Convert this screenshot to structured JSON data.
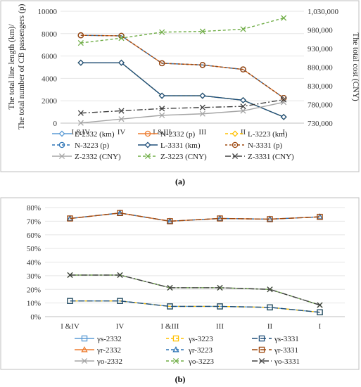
{
  "panel_a_label": "(a)",
  "panel_b_label": "(b)",
  "chart_data": [
    {
      "type": "line",
      "categories": [
        "I &IV",
        "IV",
        "I &III",
        "III",
        "II",
        "I"
      ],
      "ylabel_left_line1": "The total line length (km)/",
      "ylabel_left_line2": "The total number of CB passengers (p)",
      "ylabel_right": "The total cost (CNY)",
      "ylim_left": [
        0,
        10000
      ],
      "yticks_left": [
        0,
        2000,
        4000,
        6000,
        8000,
        10000
      ],
      "ylim_right": [
        730000,
        1030000
      ],
      "yticks_right": [
        "730,000",
        "780,000",
        "830,000",
        "880,000",
        "930,000",
        "980,000",
        "1,030,000"
      ],
      "ytick_right_values": [
        730000,
        780000,
        830000,
        880000,
        930000,
        980000,
        1030000
      ],
      "series": [
        {
          "name": "L-2332 (km)",
          "axis": "left",
          "color": "#5b9bd5",
          "dash": "",
          "marker": "diamond",
          "values": [
            5400,
            5400,
            2450,
            2450,
            2050,
            550
          ]
        },
        {
          "name": "N-2332 (p)",
          "axis": "left",
          "color": "#ed7d31",
          "dash": "",
          "marker": "circle",
          "values": [
            7850,
            7800,
            5350,
            5200,
            4800,
            2250
          ]
        },
        {
          "name": "L-3223 (km)",
          "axis": "left",
          "color": "#ffc000",
          "dash": "4,3",
          "marker": "diamond",
          "values": [
            5400,
            5400,
            2450,
            2450,
            2050,
            550
          ]
        },
        {
          "name": "N-3223 (p)",
          "axis": "left",
          "color": "#2e75b6",
          "dash": "4,3",
          "marker": "circle",
          "values": [
            7850,
            7800,
            5350,
            5200,
            4800,
            2250
          ]
        },
        {
          "name": "L-3331 (km)",
          "axis": "left",
          "color": "#1f4e79",
          "dash": "",
          "marker": "diamond",
          "values": [
            5400,
            5400,
            2450,
            2450,
            2050,
            550
          ]
        },
        {
          "name": "N-3331 (p)",
          "axis": "left",
          "color": "#9e480e",
          "dash": "3,3",
          "marker": "circle",
          "values": [
            7850,
            7800,
            5350,
            5200,
            4800,
            2250
          ]
        },
        {
          "name": "Z-2332 (CNY)",
          "axis": "right",
          "color": "#a5a5a5",
          "dash": "",
          "marker": "x",
          "values": [
            730500,
            741000,
            751000,
            755000,
            763000,
            786000
          ]
        },
        {
          "name": "Z-3223 (CNY)",
          "axis": "right",
          "color": "#70ad47",
          "dash": "4,3",
          "marker": "x",
          "values": [
            945000,
            958000,
            974000,
            976000,
            982000,
            1012000
          ]
        },
        {
          "name": "Z-3331 (CNY)",
          "axis": "right",
          "color": "#404040",
          "dash": "8,3,2,3",
          "marker": "x",
          "values": [
            757000,
            763000,
            769000,
            772000,
            775000,
            793000
          ]
        }
      ]
    },
    {
      "type": "line",
      "categories": [
        "I &IV",
        "IV",
        "I &III",
        "III",
        "II",
        "I"
      ],
      "ylim": [
        0,
        80
      ],
      "yticks": [
        "0%",
        "10%",
        "20%",
        "30%",
        "40%",
        "50%",
        "60%",
        "70%",
        "80%"
      ],
      "ytick_values": [
        0,
        10,
        20,
        30,
        40,
        50,
        60,
        70,
        80
      ],
      "series": [
        {
          "name": "γs-2332",
          "color": "#5b9bd5",
          "dash": "",
          "marker": "square",
          "values": [
            11.5,
            11.5,
            7.5,
            7.5,
            6.8,
            3.2
          ]
        },
        {
          "name": "γs-3223",
          "color": "#ffc000",
          "dash": "4,3",
          "marker": "square",
          "values": [
            11.5,
            11.5,
            7.5,
            7.5,
            6.8,
            3.2
          ]
        },
        {
          "name": "γs-3331",
          "color": "#1f4e79",
          "dash": "8,4",
          "marker": "square",
          "values": [
            11.5,
            11.5,
            7.5,
            7.5,
            6.8,
            3.2
          ]
        },
        {
          "name": "γr-2332",
          "color": "#ed7d31",
          "dash": "",
          "marker": "triangle",
          "values": [
            72,
            76,
            70,
            72,
            71.5,
            73.2
          ]
        },
        {
          "name": "γr-3223",
          "color": "#2e75b6",
          "dash": "4,3",
          "marker": "triangle",
          "values": [
            72,
            76,
            70,
            72,
            71.5,
            73.2
          ]
        },
        {
          "name": "γr-3331",
          "color": "#9e480e",
          "dash": "8,4",
          "marker": "square",
          "values": [
            72,
            76,
            70,
            72,
            71.5,
            73.2
          ]
        },
        {
          "name": "γo-2332",
          "color": "#a5a5a5",
          "dash": "",
          "marker": "x",
          "values": [
            30.5,
            30.5,
            21.2,
            21.2,
            20,
            8.5
          ]
        },
        {
          "name": "γo-3223",
          "color": "#70ad47",
          "dash": "4,3",
          "marker": "x",
          "values": [
            30.5,
            30.5,
            21.2,
            21.2,
            20,
            8.5
          ]
        },
        {
          "name": "γo-3331",
          "color": "#404040",
          "dash": "8,3,2,3",
          "marker": "x",
          "values": [
            30.5,
            30.5,
            21.2,
            21.2,
            20,
            8.5
          ]
        }
      ]
    }
  ]
}
